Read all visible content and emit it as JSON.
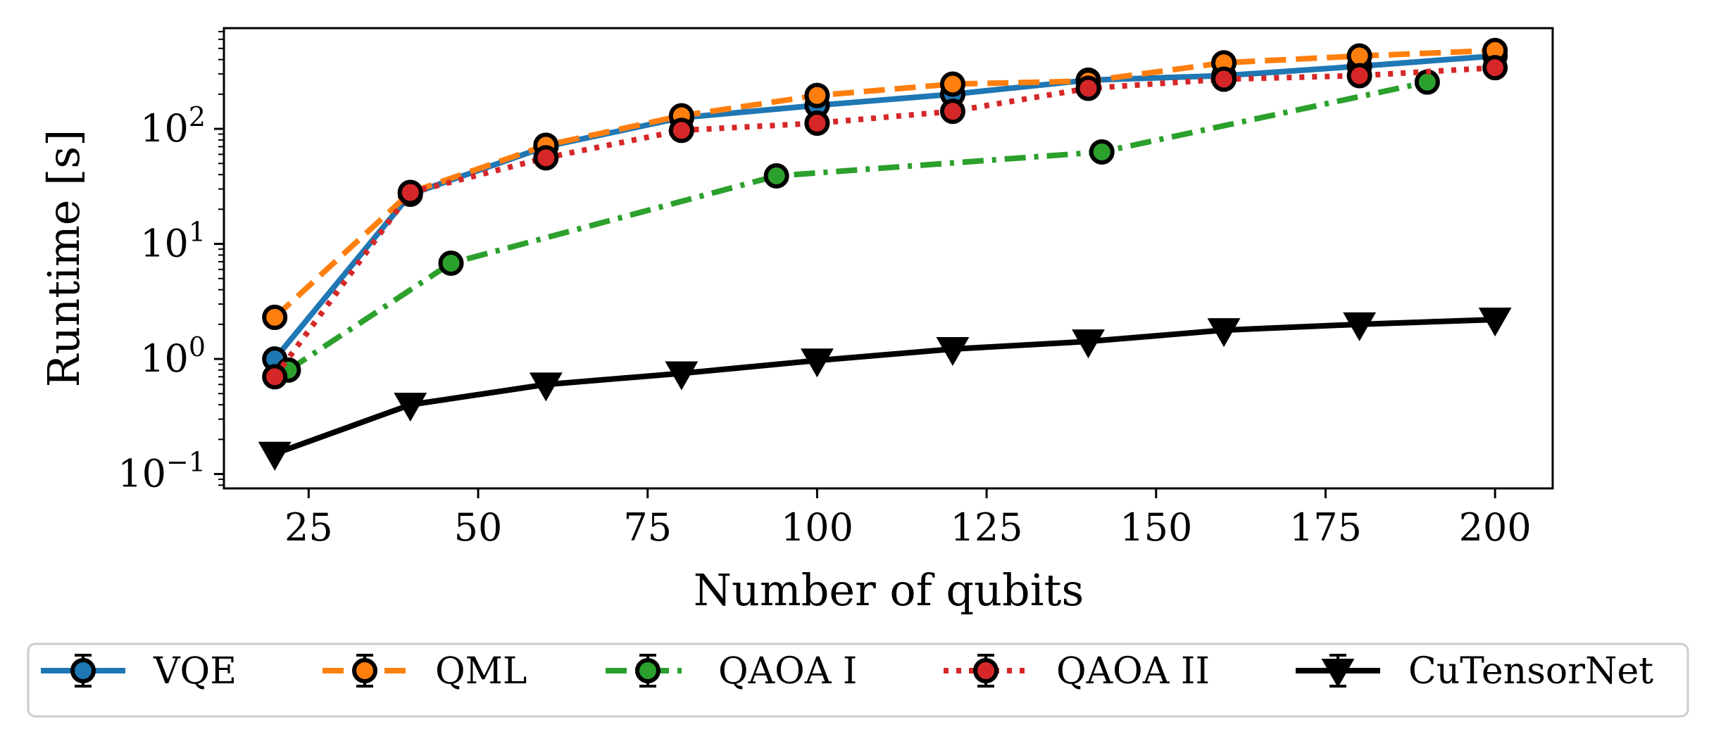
{
  "chart_data": {
    "type": "line",
    "title": "",
    "xlabel": "Number of qubits",
    "ylabel": "Runtime [s]",
    "xlim": [
      12.5,
      208.5
    ],
    "ylim": [
      0.075,
      750
    ],
    "yscale": "log",
    "x_ticks": [
      25,
      50,
      75,
      100,
      125,
      150,
      175,
      200
    ],
    "y_ticks": [
      {
        "value": 0.1,
        "base": "10",
        "exp": "−1"
      },
      {
        "value": 1,
        "base": "10",
        "exp": "0"
      },
      {
        "value": 10,
        "base": "10",
        "exp": "1"
      },
      {
        "value": 100,
        "base": "10",
        "exp": "2"
      }
    ],
    "grid": false,
    "legend_position": "bottom, outside",
    "series": [
      {
        "name": "VQE",
        "color": "#1f77b4",
        "dash": "solid",
        "marker": "circle",
        "x": [
          20,
          40,
          60,
          80,
          100,
          120,
          140,
          160,
          180,
          200
        ],
        "y": [
          1.0,
          27,
          70,
          125,
          160,
          200,
          265,
          290,
          350,
          430
        ]
      },
      {
        "name": "QML",
        "color": "#ff7f0e",
        "dash": "dashed",
        "marker": "circle",
        "x": [
          20,
          40,
          60,
          80,
          100,
          120,
          140,
          160,
          180,
          200
        ],
        "y": [
          2.3,
          28,
          72,
          130,
          195,
          245,
          260,
          375,
          430,
          480
        ]
      },
      {
        "name": "QAOA I",
        "color": "#2ca02c",
        "dash": "dashdot",
        "marker": "circle",
        "x": [
          22,
          46,
          94,
          142,
          190
        ],
        "y": [
          0.8,
          6.8,
          39,
          63,
          255
        ]
      },
      {
        "name": "QAOA II",
        "color": "#d62728",
        "dash": "dotted",
        "marker": "circle",
        "x": [
          20,
          40,
          60,
          80,
          100,
          120,
          140,
          160,
          180,
          200
        ],
        "y": [
          0.7,
          28,
          56,
          97,
          112,
          142,
          225,
          270,
          290,
          340
        ]
      },
      {
        "name": "CuTensorNet",
        "color": "#000000",
        "dash": "solid",
        "marker": "triangle_down",
        "x": [
          20,
          40,
          60,
          80,
          100,
          120,
          140,
          160,
          180,
          200
        ],
        "y": [
          0.15,
          0.4,
          0.6,
          0.75,
          0.97,
          1.22,
          1.42,
          1.78,
          2.0,
          2.2
        ]
      }
    ]
  }
}
